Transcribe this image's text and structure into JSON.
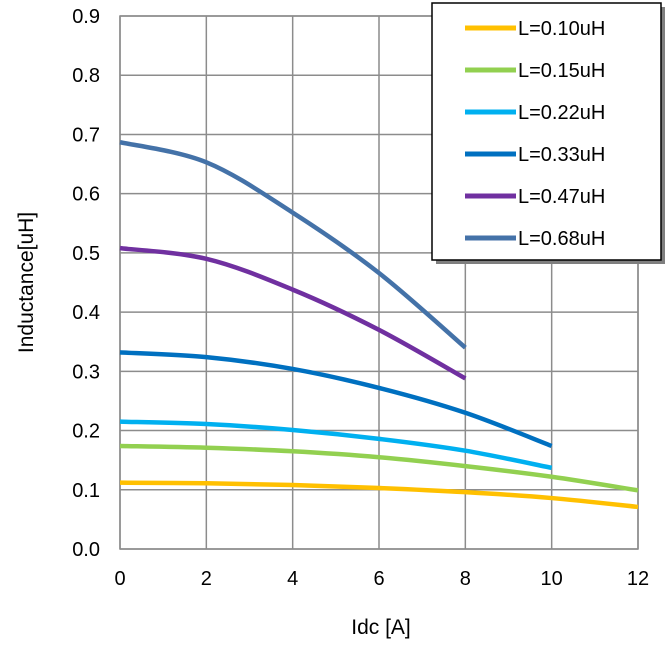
{
  "chart_data": {
    "type": "line",
    "xlabel": "Idc [A]",
    "ylabel": "Inductance[uH]",
    "xlim": [
      0,
      12
    ],
    "ylim": [
      0,
      0.9
    ],
    "x_ticks": [
      "0",
      "2",
      "4",
      "6",
      "8",
      "10",
      "12"
    ],
    "y_ticks": [
      "0.0",
      "0.1",
      "0.2",
      "0.3",
      "0.4",
      "0.5",
      "0.6",
      "0.7",
      "0.8",
      "0.9"
    ],
    "grid": true,
    "legend_position": "top-right",
    "series": [
      {
        "name": "L=0.10uH",
        "color": "#FFC000",
        "x": [
          0,
          2,
          4,
          6,
          8,
          10,
          12
        ],
        "y": [
          0.112,
          0.111,
          0.108,
          0.103,
          0.096,
          0.086,
          0.071
        ]
      },
      {
        "name": "L=0.15uH",
        "color": "#92D050",
        "x": [
          0,
          2,
          4,
          6,
          8,
          10,
          12
        ],
        "y": [
          0.174,
          0.171,
          0.165,
          0.155,
          0.14,
          0.122,
          0.099
        ]
      },
      {
        "name": "L=0.22uH",
        "color": "#00B0F0",
        "x": [
          0,
          2,
          4,
          6,
          8,
          10
        ],
        "y": [
          0.215,
          0.211,
          0.201,
          0.186,
          0.166,
          0.137
        ]
      },
      {
        "name": "L=0.33uH",
        "color": "#0070C0",
        "x": [
          0,
          2,
          4,
          6,
          8,
          10
        ],
        "y": [
          0.332,
          0.324,
          0.304,
          0.272,
          0.23,
          0.174
        ]
      },
      {
        "name": "L=0.47uH",
        "color": "#7030A0",
        "x": [
          0,
          2,
          4,
          6,
          8
        ],
        "y": [
          0.508,
          0.49,
          0.438,
          0.37,
          0.288
        ]
      },
      {
        "name": "L=0.68uH",
        "color": "#4472A8",
        "x": [
          0,
          2,
          4,
          6,
          8
        ],
        "y": [
          0.687,
          0.653,
          0.568,
          0.466,
          0.34
        ]
      }
    ]
  }
}
